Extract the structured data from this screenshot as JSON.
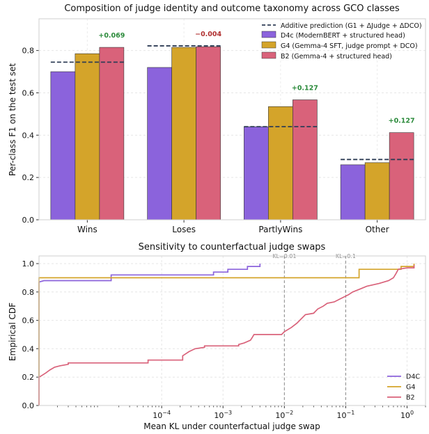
{
  "chart_data": [
    {
      "type": "bar",
      "title": "Composition of judge identity and outcome taxonomy across GCO classes",
      "xlabel": "",
      "ylabel": "Per-class F1 on the test set",
      "ylim": [
        0,
        0.95
      ],
      "yticks": [
        "0.0",
        "0.2",
        "0.4",
        "0.6",
        "0.8"
      ],
      "categories": [
        "Wins",
        "Loses",
        "PartlyWins",
        "Other"
      ],
      "series": [
        {
          "name": "D4c (ModernBERT + structured head)",
          "color": "#8b63dc",
          "values": [
            0.7,
            0.72,
            0.44,
            0.26
          ]
        },
        {
          "name": "G4 (Gemma-4 SFT, judge prompt + DCO)",
          "color": "#d4a42a",
          "values": [
            0.785,
            0.815,
            0.535,
            0.27
          ]
        },
        {
          "name": "B2 (Gemma-4 + structured head)",
          "color": "#d9627a",
          "values": [
            0.815,
            0.818,
            0.567,
            0.412
          ]
        }
      ],
      "additive": {
        "name": "Additive prediction (G1 + ΔJudge + ΔDCO)",
        "color": "#2e3d55",
        "values": [
          0.745,
          0.822,
          0.44,
          0.285
        ]
      },
      "deltas": [
        {
          "label": "+0.069",
          "color": "#2a8a3a"
        },
        {
          "label": "−0.004",
          "color": "#b03030"
        },
        {
          "label": "+0.127",
          "color": "#2a8a3a"
        },
        {
          "label": "+0.127",
          "color": "#2a8a3a"
        }
      ],
      "grid": true,
      "legend_position": "top-right"
    },
    {
      "type": "line",
      "title": "Sensitivity to counterfactual judge swaps",
      "xlabel": "Mean KL under counterfactual judge swap",
      "ylabel": "Empirical CDF",
      "xscale": "log",
      "xlim": [
        1e-06,
        2
      ],
      "ylim": [
        0,
        1.0
      ],
      "xticks": [
        {
          "base": "10",
          "exp": "−4",
          "value": 0.0001
        },
        {
          "base": "10",
          "exp": "−3",
          "value": 0.001
        },
        {
          "base": "10",
          "exp": "−2",
          "value": 0.01
        },
        {
          "base": "10",
          "exp": "−1",
          "value": 0.1
        },
        {
          "base": "10",
          "exp": "0",
          "value": 1
        }
      ],
      "yticks": [
        "0.0",
        "0.2",
        "0.4",
        "0.6",
        "0.8",
        "1.0"
      ],
      "reference_lines": [
        {
          "x": 0.01,
          "label": "KL=0.01"
        },
        {
          "x": 0.1,
          "label": "KL=0.1"
        }
      ],
      "series": [
        {
          "name": "D4C",
          "color": "#8b63dc",
          "points": [
            [
              1e-06,
              0.0
            ],
            [
              1e-06,
              0.87
            ],
            [
              1.2e-06,
              0.88
            ],
            [
              1.5e-05,
              0.88
            ],
            [
              1.5e-05,
              0.92
            ],
            [
              0.0007,
              0.92
            ],
            [
              0.0007,
              0.94
            ],
            [
              0.0012,
              0.94
            ],
            [
              0.0012,
              0.96
            ],
            [
              0.0025,
              0.96
            ],
            [
              0.0025,
              0.98
            ],
            [
              0.004,
              0.98
            ],
            [
              0.004,
              1.0
            ]
          ]
        },
        {
          "name": "G4",
          "color": "#d4a42a",
          "points": [
            [
              1e-06,
              0.0
            ],
            [
              1e-06,
              0.9
            ],
            [
              0.165,
              0.9
            ],
            [
              0.165,
              0.96
            ],
            [
              0.8,
              0.96
            ],
            [
              0.8,
              0.98
            ],
            [
              1.3,
              0.98
            ],
            [
              1.3,
              1.0
            ]
          ]
        },
        {
          "name": "B2",
          "color": "#d9627a",
          "points": [
            [
              1e-06,
              0.0
            ],
            [
              1e-06,
              0.2
            ],
            [
              1.1e-06,
              0.21
            ],
            [
              1.3e-06,
              0.23
            ],
            [
              1.5e-06,
              0.25
            ],
            [
              1.8e-06,
              0.27
            ],
            [
              2.2e-06,
              0.28
            ],
            [
              3e-06,
              0.29
            ],
            [
              3e-06,
              0.3
            ],
            [
              6e-05,
              0.3
            ],
            [
              6e-05,
              0.32
            ],
            [
              0.00022,
              0.32
            ],
            [
              0.00022,
              0.35
            ],
            [
              0.00028,
              0.38
            ],
            [
              0.00035,
              0.4
            ],
            [
              0.0005,
              0.41
            ],
            [
              0.0005,
              0.42
            ],
            [
              0.0018,
              0.42
            ],
            [
              0.0018,
              0.43
            ],
            [
              0.0022,
              0.44
            ],
            [
              0.0028,
              0.46
            ],
            [
              0.003,
              0.48
            ],
            [
              0.0032,
              0.5
            ],
            [
              0.009,
              0.5
            ],
            [
              0.01,
              0.52
            ],
            [
              0.013,
              0.55
            ],
            [
              0.016,
              0.58
            ],
            [
              0.022,
              0.64
            ],
            [
              0.03,
              0.65
            ],
            [
              0.035,
              0.68
            ],
            [
              0.043,
              0.7
            ],
            [
              0.05,
              0.72
            ],
            [
              0.065,
              0.73
            ],
            [
              0.08,
              0.75
            ],
            [
              0.11,
              0.78
            ],
            [
              0.13,
              0.8
            ],
            [
              0.17,
              0.82
            ],
            [
              0.22,
              0.84
            ],
            [
              0.35,
              0.86
            ],
            [
              0.5,
              0.88
            ],
            [
              0.6,
              0.9
            ],
            [
              0.66,
              0.93
            ],
            [
              0.72,
              0.96
            ],
            [
              1.0,
              0.97
            ],
            [
              1.3,
              0.97
            ],
            [
              1.3,
              0.99
            ]
          ]
        }
      ],
      "grid": true,
      "legend_position": "bottom-right"
    }
  ]
}
